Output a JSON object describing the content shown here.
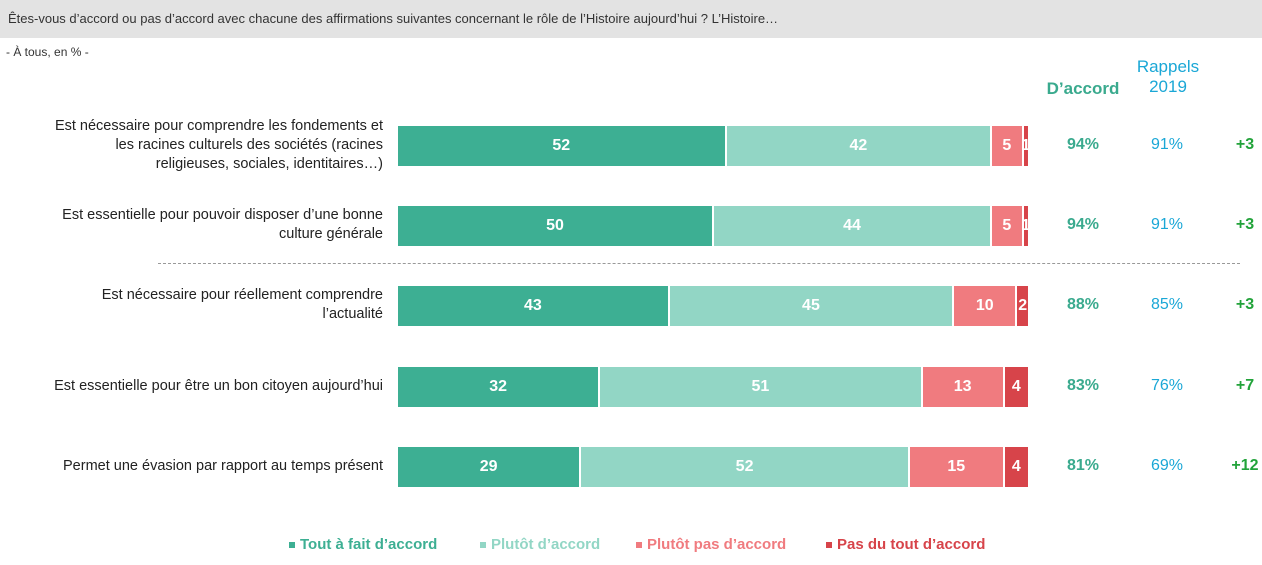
{
  "header": {
    "question": "Êtes-vous d’accord ou pas d’accord avec chacune des affirmations suivantes concernant le rôle de l’Histoire aujourd’hui ? L’Histoire…",
    "base": "- À tous, en % -"
  },
  "columns": {
    "accord": "D’accord",
    "rappels_line1": "Rappels",
    "rappels_line2": "2019"
  },
  "colors": {
    "tout_a_fait": "#3daf93",
    "plutot": "#92d6c5",
    "plutot_pas": "#f07b7f",
    "pas_du_tout": "#d7444a",
    "accord_text": "#3aaa8e",
    "rappel_text": "#1aa7d6",
    "diff_text": "#22a33a"
  },
  "chart_data": {
    "type": "bar",
    "orientation": "horizontal",
    "stacked": true,
    "categories": [
      "Est nécessaire pour comprendre les fondements et les racines culturels des sociétés (racines religieuses, sociales, identitaires…)",
      "Est essentielle pour pouvoir disposer d’une bonne culture générale",
      "Est nécessaire pour réellement comprendre l’actualité",
      "Est essentielle pour être un bon citoyen aujourd’hui",
      "Permet une évasion par rapport au temps présent"
    ],
    "category_lines": [
      [
        "Est nécessaire pour comprendre les fondements et",
        "les racines culturels des sociétés (racines",
        "religieuses, sociales, identitaires…)"
      ],
      [
        "Est essentielle pour pouvoir disposer d’une bonne",
        "culture générale"
      ],
      [
        "Est nécessaire pour réellement comprendre",
        "l’actualité"
      ],
      [
        "Est essentielle pour être un bon citoyen aujourd’hui"
      ],
      [
        "Permet une évasion par rapport au temps présent"
      ]
    ],
    "series": [
      {
        "name": "Tout à fait d’accord",
        "values": [
          52,
          50,
          43,
          32,
          29
        ]
      },
      {
        "name": "Plutôt d’accord",
        "values": [
          42,
          44,
          45,
          51,
          52
        ]
      },
      {
        "name": "Plutôt pas d’accord",
        "values": [
          5,
          5,
          10,
          13,
          15
        ]
      },
      {
        "name": "Pas du tout d’accord",
        "values": [
          1,
          1,
          2,
          4,
          4
        ]
      }
    ],
    "accord_totals": [
      "94%",
      "94%",
      "88%",
      "83%",
      "81%"
    ],
    "rappels_2019": [
      "91%",
      "91%",
      "85%",
      "76%",
      "69%"
    ],
    "evolution": [
      "+3",
      "+3",
      "+3",
      "+7",
      "+12"
    ],
    "xlim": [
      0,
      100
    ],
    "legend_position": "bottom",
    "grid": false
  }
}
